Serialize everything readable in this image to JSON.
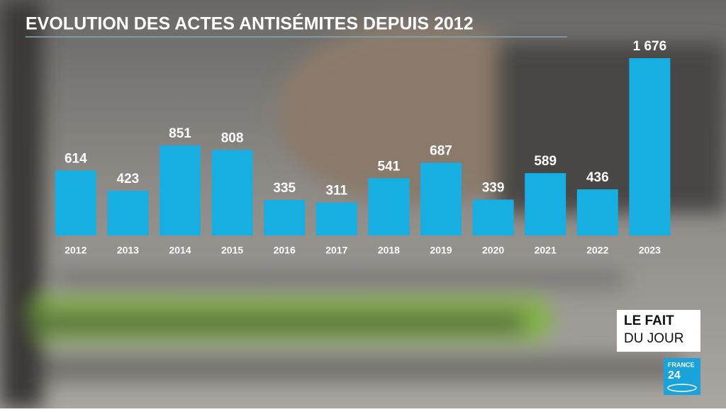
{
  "chart_data": {
    "type": "bar",
    "title": "EVOLUTION DES ACTES ANTISÉMITES DEPUIS 2012",
    "categories": [
      "2012",
      "2013",
      "2014",
      "2015",
      "2016",
      "2017",
      "2018",
      "2019",
      "2020",
      "2021",
      "2022",
      "2023"
    ],
    "values": [
      614,
      423,
      851,
      808,
      335,
      311,
      541,
      687,
      339,
      589,
      436,
      1676
    ],
    "value_labels": [
      "614",
      "423",
      "851",
      "808",
      "335",
      "311",
      "541",
      "687",
      "339",
      "589",
      "436",
      "1 676"
    ],
    "color": "#17aee2"
  },
  "branding": {
    "show_line1": "LE FAIT",
    "show_line2": "DU JOUR",
    "channel_line1": "FRANCE",
    "channel_line2": "24"
  }
}
